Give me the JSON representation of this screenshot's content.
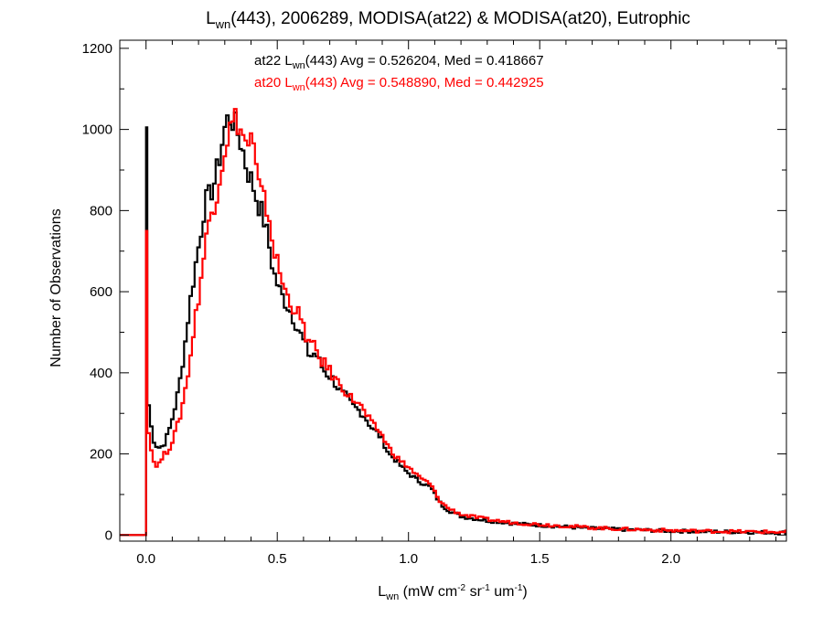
{
  "chart_data": {
    "type": "line",
    "step": true,
    "title": {
      "base": "L",
      "sub": "wn",
      "rest": "(443), 2006289, MODISA(at22) & MODISA(at20), Eutrophic"
    },
    "xlabel": {
      "base": "L",
      "sub": "wn",
      "unit_parts": [
        {
          "text": " (mW cm",
          "sup": "-2"
        },
        {
          "text": " sr",
          "sup": "-1"
        },
        {
          "text": " um",
          "sup": "-1"
        },
        {
          "text": ")",
          "sup": ""
        }
      ]
    },
    "ylabel": "Number of Observations",
    "xlim": [
      -0.1,
      2.44
    ],
    "ylim": [
      -15,
      1220
    ],
    "xticks": [
      0.0,
      0.5,
      1.0,
      1.5,
      2.0
    ],
    "xtick_labels": [
      "0.0",
      "0.5",
      "1.0",
      "1.5",
      "2.0"
    ],
    "yticks": [
      0,
      200,
      400,
      600,
      800,
      1000,
      1200
    ],
    "ytick_labels": [
      "0",
      "200",
      "400",
      "600",
      "800",
      "1000",
      "1200"
    ],
    "grid": false,
    "legend_position": "top-center",
    "series": [
      {
        "name": "at22",
        "color": "#000000",
        "legend": {
          "prefix": "at22 L",
          "sub": "wn",
          "suffix": "(443) Avg = 0.526204, Med = 0.418667"
        },
        "points": [
          [
            -0.1,
            0
          ],
          [
            0.0,
            0
          ],
          [
            0.0,
            1005
          ],
          [
            0.005,
            320
          ],
          [
            0.02,
            240
          ],
          [
            0.04,
            215
          ],
          [
            0.06,
            220
          ],
          [
            0.08,
            250
          ],
          [
            0.1,
            300
          ],
          [
            0.12,
            360
          ],
          [
            0.14,
            450
          ],
          [
            0.16,
            560
          ],
          [
            0.18,
            650
          ],
          [
            0.2,
            730
          ],
          [
            0.22,
            820
          ],
          [
            0.24,
            840
          ],
          [
            0.26,
            880
          ],
          [
            0.28,
            950
          ],
          [
            0.3,
            1020
          ],
          [
            0.32,
            1030
          ],
          [
            0.34,
            1000
          ],
          [
            0.36,
            960
          ],
          [
            0.38,
            900
          ],
          [
            0.4,
            870
          ],
          [
            0.42,
            820
          ],
          [
            0.44,
            790
          ],
          [
            0.46,
            730
          ],
          [
            0.48,
            650
          ],
          [
            0.5,
            610
          ],
          [
            0.52,
            580
          ],
          [
            0.54,
            560
          ],
          [
            0.56,
            530
          ],
          [
            0.58,
            500
          ],
          [
            0.6,
            470
          ],
          [
            0.62,
            440
          ],
          [
            0.64,
            450
          ],
          [
            0.66,
            420
          ],
          [
            0.68,
            400
          ],
          [
            0.7,
            390
          ],
          [
            0.72,
            370
          ],
          [
            0.74,
            350
          ],
          [
            0.76,
            340
          ],
          [
            0.78,
            320
          ],
          [
            0.8,
            310
          ],
          [
            0.82,
            300
          ],
          [
            0.84,
            280
          ],
          [
            0.86,
            260
          ],
          [
            0.88,
            250
          ],
          [
            0.9,
            230
          ],
          [
            0.92,
            200
          ],
          [
            0.94,
            190
          ],
          [
            0.96,
            175
          ],
          [
            0.98,
            160
          ],
          [
            1.0,
            150
          ],
          [
            1.02,
            140
          ],
          [
            1.04,
            130
          ],
          [
            1.06,
            125
          ],
          [
            1.08,
            118
          ],
          [
            1.1,
            95
          ],
          [
            1.12,
            75
          ],
          [
            1.15,
            60
          ],
          [
            1.2,
            45
          ],
          [
            1.25,
            40
          ],
          [
            1.3,
            35
          ],
          [
            1.35,
            32
          ],
          [
            1.4,
            28
          ],
          [
            1.5,
            24
          ],
          [
            1.6,
            20
          ],
          [
            1.7,
            16
          ],
          [
            1.8,
            14
          ],
          [
            1.9,
            12
          ],
          [
            2.0,
            10
          ],
          [
            2.1,
            9
          ],
          [
            2.2,
            8
          ],
          [
            2.3,
            7
          ],
          [
            2.44,
            6
          ]
        ]
      },
      {
        "name": "at20",
        "color": "#ff0000",
        "legend": {
          "prefix": "at20 L",
          "sub": "wn",
          "suffix": "(443) Avg = 0.548890, Med = 0.442925"
        },
        "points": [
          [
            -0.1,
            0
          ],
          [
            0.0,
            0
          ],
          [
            0.0,
            750
          ],
          [
            0.005,
            260
          ],
          [
            0.02,
            185
          ],
          [
            0.04,
            170
          ],
          [
            0.06,
            195
          ],
          [
            0.08,
            210
          ],
          [
            0.1,
            240
          ],
          [
            0.12,
            280
          ],
          [
            0.14,
            340
          ],
          [
            0.16,
            420
          ],
          [
            0.18,
            520
          ],
          [
            0.2,
            610
          ],
          [
            0.22,
            710
          ],
          [
            0.24,
            790
          ],
          [
            0.26,
            830
          ],
          [
            0.28,
            900
          ],
          [
            0.3,
            970
          ],
          [
            0.32,
            1010
          ],
          [
            0.34,
            1030
          ],
          [
            0.36,
            990
          ],
          [
            0.38,
            960
          ],
          [
            0.4,
            980
          ],
          [
            0.42,
            870
          ],
          [
            0.44,
            830
          ],
          [
            0.46,
            800
          ],
          [
            0.48,
            710
          ],
          [
            0.5,
            660
          ],
          [
            0.52,
            610
          ],
          [
            0.54,
            580
          ],
          [
            0.56,
            560
          ],
          [
            0.58,
            540
          ],
          [
            0.6,
            500
          ],
          [
            0.62,
            470
          ],
          [
            0.64,
            460
          ],
          [
            0.66,
            430
          ],
          [
            0.68,
            420
          ],
          [
            0.7,
            400
          ],
          [
            0.72,
            380
          ],
          [
            0.74,
            370
          ],
          [
            0.76,
            350
          ],
          [
            0.78,
            335
          ],
          [
            0.8,
            330
          ],
          [
            0.82,
            310
          ],
          [
            0.84,
            290
          ],
          [
            0.86,
            270
          ],
          [
            0.88,
            260
          ],
          [
            0.9,
            240
          ],
          [
            0.92,
            215
          ],
          [
            0.94,
            200
          ],
          [
            0.96,
            185
          ],
          [
            0.98,
            175
          ],
          [
            1.0,
            165
          ],
          [
            1.02,
            152
          ],
          [
            1.04,
            140
          ],
          [
            1.06,
            133
          ],
          [
            1.08,
            125
          ],
          [
            1.1,
            100
          ],
          [
            1.12,
            80
          ],
          [
            1.15,
            65
          ],
          [
            1.2,
            50
          ],
          [
            1.25,
            44
          ],
          [
            1.3,
            38
          ],
          [
            1.35,
            34
          ],
          [
            1.4,
            30
          ],
          [
            1.5,
            26
          ],
          [
            1.6,
            22
          ],
          [
            1.7,
            18
          ],
          [
            1.8,
            15
          ],
          [
            1.9,
            13
          ],
          [
            2.0,
            11
          ],
          [
            2.1,
            10
          ],
          [
            2.2,
            9
          ],
          [
            2.3,
            8
          ],
          [
            2.44,
            7
          ]
        ]
      }
    ]
  }
}
